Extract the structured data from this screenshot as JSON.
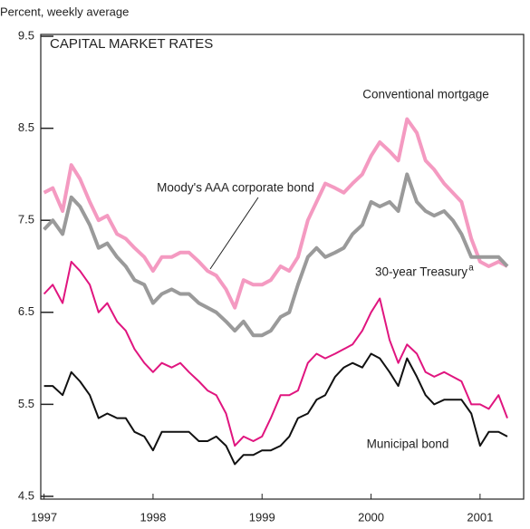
{
  "chart_data": {
    "type": "line",
    "title": "CAPITAL MARKET RATES",
    "y_label": "Percent, weekly average",
    "x": [
      1997,
      1997.08,
      1997.17,
      1997.25,
      1997.33,
      1997.42,
      1997.5,
      1997.58,
      1997.67,
      1997.75,
      1997.83,
      1997.92,
      1998,
      1998.08,
      1998.17,
      1998.25,
      1998.33,
      1998.42,
      1998.5,
      1998.58,
      1998.67,
      1998.75,
      1998.83,
      1998.92,
      1999,
      1999.08,
      1999.17,
      1999.25,
      1999.33,
      1999.42,
      1999.5,
      1999.58,
      1999.67,
      1999.75,
      1999.83,
      1999.92,
      2000,
      2000.08,
      2000.17,
      2000.25,
      2000.33,
      2000.42,
      2000.5,
      2000.58,
      2000.67,
      2000.75,
      2000.83,
      2000.92,
      2001,
      2001.08,
      2001.17,
      2001.25
    ],
    "series": [
      {
        "name": "Conventional mortgage",
        "color": "#f49ac1",
        "width": 4,
        "values": [
          7.8,
          7.85,
          7.6,
          8.1,
          7.95,
          7.7,
          7.5,
          7.55,
          7.35,
          7.3,
          7.2,
          7.1,
          6.95,
          7.1,
          7.1,
          7.15,
          7.15,
          7.05,
          6.95,
          6.9,
          6.75,
          6.55,
          6.85,
          6.8,
          6.8,
          6.85,
          7.0,
          6.95,
          7.1,
          7.5,
          7.7,
          7.9,
          7.85,
          7.8,
          7.9,
          8.0,
          8.2,
          8.35,
          8.25,
          8.15,
          8.6,
          8.45,
          8.15,
          8.05,
          7.9,
          7.8,
          7.7,
          7.3,
          7.05,
          7.0,
          7.05,
          7.0
        ]
      },
      {
        "name": "Moody's AAA corporate bond",
        "color": "#9a9a9a",
        "width": 4,
        "values": [
          7.4,
          7.5,
          7.35,
          7.75,
          7.65,
          7.45,
          7.2,
          7.25,
          7.1,
          7.0,
          6.85,
          6.8,
          6.6,
          6.7,
          6.75,
          6.7,
          6.7,
          6.6,
          6.55,
          6.5,
          6.4,
          6.3,
          6.4,
          6.25,
          6.25,
          6.3,
          6.45,
          6.5,
          6.8,
          7.1,
          7.2,
          7.1,
          7.15,
          7.2,
          7.35,
          7.45,
          7.7,
          7.65,
          7.7,
          7.6,
          8.0,
          7.7,
          7.6,
          7.55,
          7.6,
          7.5,
          7.35,
          7.1,
          7.1,
          7.1,
          7.1,
          7.0
        ]
      },
      {
        "name": "30-year Treasury",
        "color": "#e0157f",
        "width": 2,
        "values": [
          6.7,
          6.8,
          6.6,
          7.05,
          6.95,
          6.8,
          6.5,
          6.6,
          6.4,
          6.3,
          6.1,
          5.95,
          5.85,
          5.95,
          5.9,
          5.95,
          5.85,
          5.75,
          5.65,
          5.6,
          5.4,
          5.05,
          5.15,
          5.1,
          5.15,
          5.35,
          5.6,
          5.6,
          5.65,
          5.95,
          6.05,
          6.0,
          6.05,
          6.1,
          6.15,
          6.3,
          6.5,
          6.65,
          6.2,
          5.95,
          6.15,
          6.05,
          5.85,
          5.8,
          5.85,
          5.8,
          5.75,
          5.5,
          5.5,
          5.45,
          5.6,
          5.35
        ]
      },
      {
        "name": "Municipal bond",
        "color": "#111111",
        "width": 2,
        "values": [
          5.7,
          5.7,
          5.6,
          5.85,
          5.75,
          5.6,
          5.35,
          5.4,
          5.35,
          5.35,
          5.2,
          5.15,
          5.0,
          5.2,
          5.2,
          5.2,
          5.2,
          5.1,
          5.1,
          5.15,
          5.05,
          4.85,
          4.95,
          4.95,
          5.0,
          5.0,
          5.05,
          5.15,
          5.35,
          5.4,
          5.55,
          5.6,
          5.8,
          5.9,
          5.95,
          5.9,
          6.05,
          6.0,
          5.85,
          5.7,
          6.0,
          5.8,
          5.6,
          5.5,
          5.55,
          5.55,
          5.55,
          5.4,
          5.05,
          5.2,
          5.2,
          5.15
        ]
      }
    ],
    "superscript": "a",
    "xlim": [
      1996.97,
      2001.4
    ],
    "xticks": [
      1997,
      1998,
      1999,
      2000,
      2001
    ],
    "ylim": [
      4.47,
      9.52
    ],
    "yticks": [
      4.5,
      5.5,
      6.5,
      7.5,
      8.5,
      9.5
    ]
  }
}
